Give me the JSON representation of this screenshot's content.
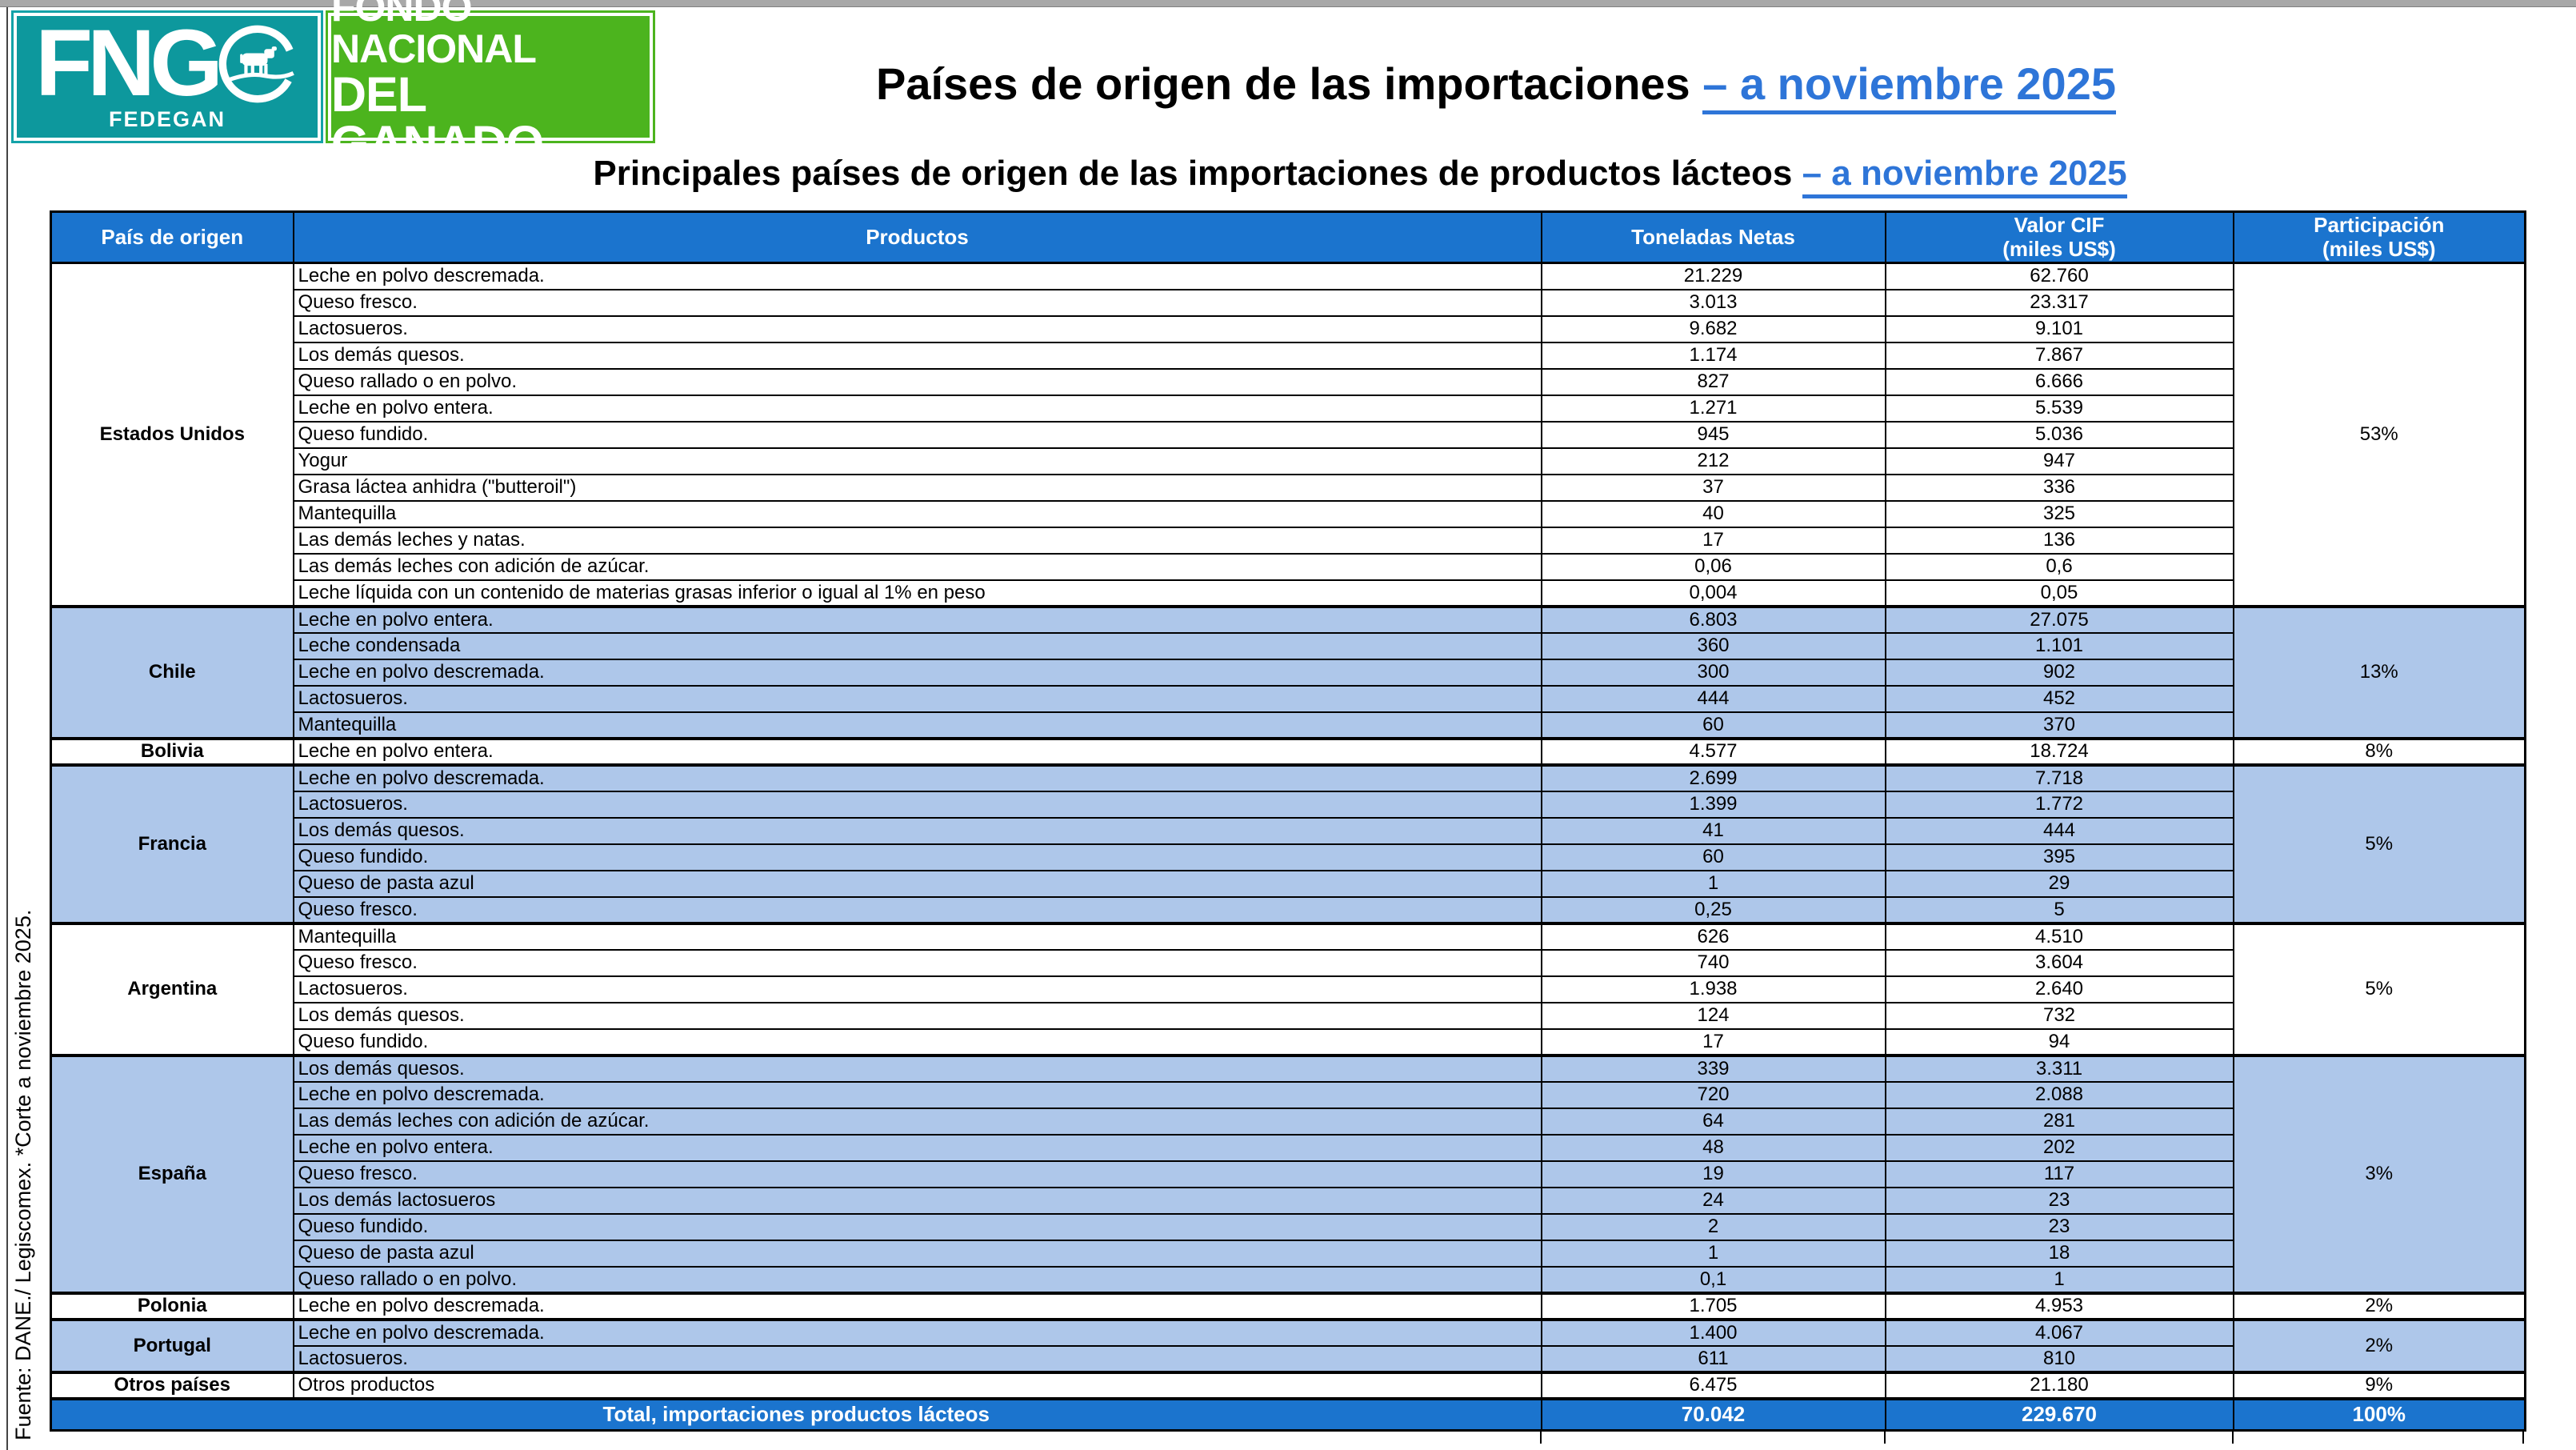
{
  "logo": {
    "acronym": "FNG",
    "sub": "FEDEGAN",
    "org_line1": "FONDO NACIONAL",
    "org_line2": "DEL GANADO",
    "teal_color": "#0d989d",
    "green_color": "#4cb41e"
  },
  "title": {
    "main": "Países de origen de las importaciones ",
    "highlight": "– a noviembre 2025"
  },
  "subtitle": {
    "main": "Principales países de origen de las importaciones de productos lácteos ",
    "highlight": "– a noviembre 2025"
  },
  "source_note": "Fuente: DANE./ Legiscomex. *Corte a noviembre 2025.",
  "colors": {
    "header_blue": "#1b74ce",
    "band_blue": "#aec7ea",
    "title_link_blue": "#2e75d8"
  },
  "table": {
    "headers": [
      {
        "label": "País de origen",
        "sub": ""
      },
      {
        "label": "Productos",
        "sub": ""
      },
      {
        "label": "Toneladas Netas",
        "sub": ""
      },
      {
        "label": "Valor  CIF",
        "sub": "(miles US$)"
      },
      {
        "label": "Participación",
        "sub": "(miles US$)"
      }
    ],
    "groups": [
      {
        "country": "Estados Unidos",
        "shade": false,
        "participation": "53%",
        "rows": [
          [
            "Leche en polvo descremada.",
            "21.229",
            "62.760"
          ],
          [
            "Queso fresco.",
            "3.013",
            "23.317"
          ],
          [
            "Lactosueros.",
            "9.682",
            "9.101"
          ],
          [
            "Los demás quesos.",
            "1.174",
            "7.867"
          ],
          [
            "Queso rallado o en polvo.",
            "827",
            "6.666"
          ],
          [
            "Leche en polvo entera.",
            "1.271",
            "5.539"
          ],
          [
            "Queso fundido.",
            "945",
            "5.036"
          ],
          [
            "Yogur",
            "212",
            "947"
          ],
          [
            "Grasa láctea anhidra (\"butteroil\")",
            "37",
            "336"
          ],
          [
            "Mantequilla",
            "40",
            "325"
          ],
          [
            "Las demás leches y natas.",
            "17",
            "136"
          ],
          [
            "Las demás leches con adición de azúcar.",
            "0,06",
            "0,6"
          ],
          [
            "Leche líquida con un contenido de materias grasas inferior o igual al 1% en peso",
            "0,004",
            "0,05"
          ]
        ]
      },
      {
        "country": "Chile",
        "shade": true,
        "participation": "13%",
        "rows": [
          [
            "Leche en polvo entera.",
            "6.803",
            "27.075"
          ],
          [
            "Leche condensada",
            "360",
            "1.101"
          ],
          [
            "Leche en polvo descremada.",
            "300",
            "902"
          ],
          [
            "Lactosueros.",
            "444",
            "452"
          ],
          [
            "Mantequilla",
            "60",
            "370"
          ]
        ]
      },
      {
        "country": "Bolivia",
        "shade": false,
        "participation": "8%",
        "rows": [
          [
            "Leche en polvo entera.",
            "4.577",
            "18.724"
          ]
        ]
      },
      {
        "country": "Francia",
        "shade": true,
        "participation": "5%",
        "rows": [
          [
            "Leche en polvo descremada.",
            "2.699",
            "7.718"
          ],
          [
            "Lactosueros.",
            "1.399",
            "1.772"
          ],
          [
            "Los demás quesos.",
            "41",
            "444"
          ],
          [
            "Queso fundido.",
            "60",
            "395"
          ],
          [
            "Queso de pasta azul",
            "1",
            "29"
          ],
          [
            "Queso fresco.",
            "0,25",
            "5"
          ]
        ]
      },
      {
        "country": "Argentina",
        "shade": false,
        "participation": "5%",
        "rows": [
          [
            "Mantequilla",
            "626",
            "4.510"
          ],
          [
            "Queso fresco.",
            "740",
            "3.604"
          ],
          [
            "Lactosueros.",
            "1.938",
            "2.640"
          ],
          [
            "Los demás quesos.",
            "124",
            "732"
          ],
          [
            "Queso fundido.",
            "17",
            "94"
          ]
        ]
      },
      {
        "country": "España",
        "shade": true,
        "participation": "3%",
        "rows": [
          [
            "Los demás quesos.",
            "339",
            "3.311"
          ],
          [
            "Leche en polvo descremada.",
            "720",
            "2.088"
          ],
          [
            "Las demás leches con adición de azúcar.",
            "64",
            "281"
          ],
          [
            "Leche en polvo entera.",
            "48",
            "202"
          ],
          [
            "Queso fresco.",
            "19",
            "117"
          ],
          [
            "Los demás lactosueros",
            "24",
            "23"
          ],
          [
            "Queso fundido.",
            "2",
            "23"
          ],
          [
            "Queso de pasta azul",
            "1",
            "18"
          ],
          [
            "Queso rallado o en polvo.",
            "0,1",
            "1"
          ]
        ]
      },
      {
        "country": "Polonia",
        "shade": false,
        "participation": "2%",
        "rows": [
          [
            "Leche en polvo descremada.",
            "1.705",
            "4.953"
          ]
        ]
      },
      {
        "country": "Portugal",
        "shade": true,
        "participation": "2%",
        "rows": [
          [
            "Leche en polvo descremada.",
            "1.400",
            "4.067"
          ],
          [
            "Lactosueros.",
            "611",
            "810"
          ]
        ]
      },
      {
        "country": "Otros países",
        "shade": false,
        "participation": "9%",
        "rows": [
          [
            "Otros productos",
            "6.475",
            "21.180"
          ]
        ]
      }
    ],
    "total": {
      "label": "Total, importaciones productos lácteos",
      "tons": "70.042",
      "value": "229.670",
      "participation": "100%"
    }
  }
}
